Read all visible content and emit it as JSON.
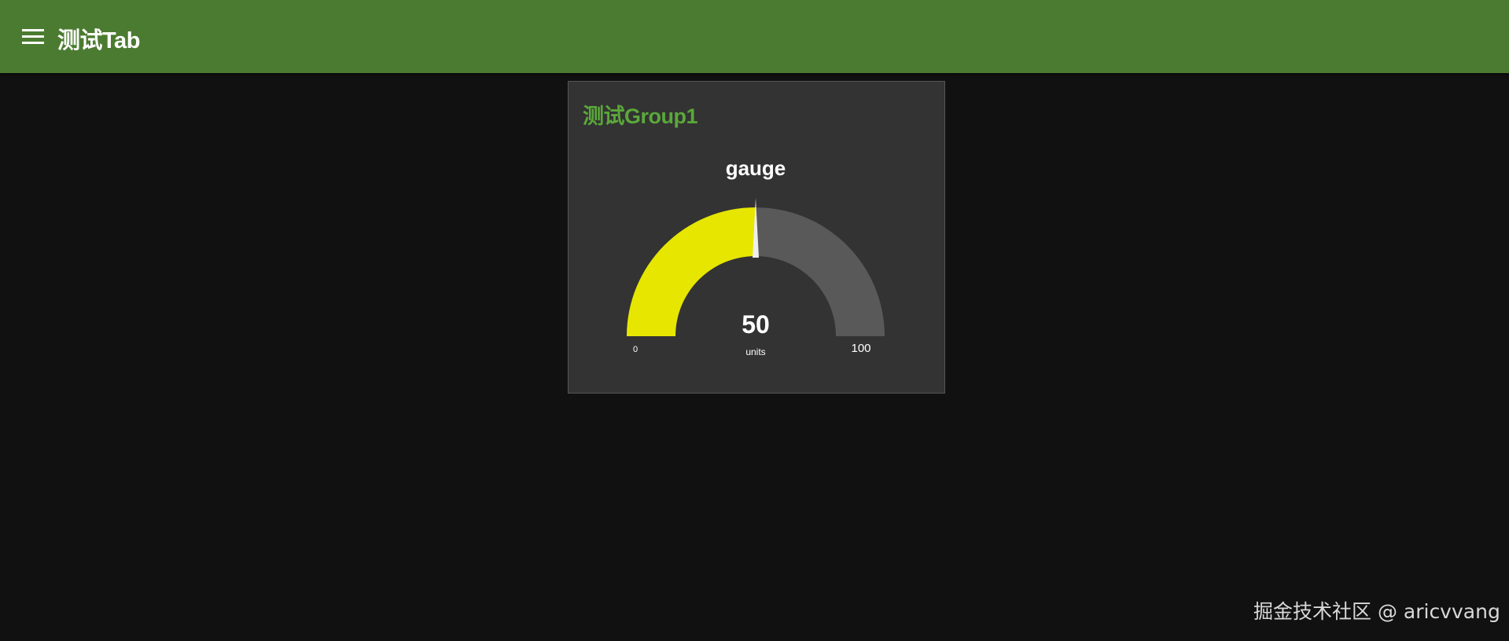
{
  "header": {
    "title": "测试Tab",
    "menu_icon": "hamburger-menu-icon",
    "background": "#4b7b30"
  },
  "group": {
    "title": "测试Group1",
    "title_color": "#5aa83a"
  },
  "gauge": {
    "label": "gauge",
    "value": 50,
    "value_text": "50",
    "units": "units",
    "min": 0,
    "max": 100,
    "min_label": "0",
    "max_label": "100",
    "fill_color": "#e6e600",
    "track_color": "#595959",
    "needle_color": "#eeeeee"
  },
  "watermark": "掘金技术社区 @ aricvvang"
}
